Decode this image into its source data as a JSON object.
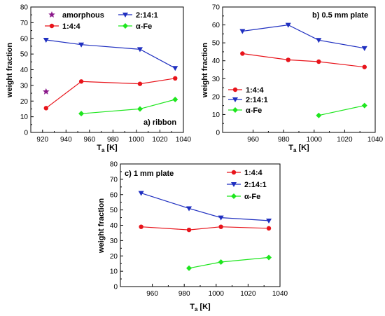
{
  "chart_data": [
    {
      "type": "line",
      "panel_label": "a) ribbon",
      "xlabel_main": "T",
      "xlabel_sub": "a",
      "xlabel_unit": "[K]",
      "ylabel": "weight fraction",
      "xlim": [
        910,
        1040
      ],
      "ylim": [
        0,
        80
      ],
      "xticks": [
        920,
        940,
        960,
        980,
        1000,
        1020,
        1040
      ],
      "yticks": [
        0,
        10,
        20,
        30,
        40,
        50,
        60,
        70,
        80
      ],
      "grid": false,
      "legend_position": "top",
      "series": [
        {
          "name": "amorphous",
          "color": "#8b1a8b",
          "marker": "star",
          "x": [
            923
          ],
          "y": [
            26
          ]
        },
        {
          "name": "2:14:1",
          "color": "#1f2fc0",
          "marker": "triangle-down",
          "x": [
            923,
            953,
            1003,
            1033
          ],
          "y": [
            59,
            56,
            53,
            41
          ]
        },
        {
          "name": "1:4:4",
          "color": "#e8141b",
          "marker": "circle",
          "x": [
            923,
            953,
            1003,
            1033
          ],
          "y": [
            15.5,
            32.5,
            31,
            34.5
          ]
        },
        {
          "name": "α-Fe",
          "color": "#1ee61e",
          "marker": "diamond",
          "x": [
            953,
            1003,
            1033
          ],
          "y": [
            12,
            15,
            21
          ]
        }
      ]
    },
    {
      "type": "line",
      "panel_label": "b) 0.5 mm plate",
      "xlabel_main": "T",
      "xlabel_sub": "a",
      "xlabel_unit": "[K]",
      "ylabel": "weight fraction",
      "xlim": [
        940,
        1040
      ],
      "ylim": [
        0,
        70
      ],
      "xticks": [
        960,
        980,
        1000,
        1020,
        1040
      ],
      "yticks": [
        0,
        10,
        20,
        30,
        40,
        50,
        60,
        70
      ],
      "grid": false,
      "legend_position": "left",
      "series": [
        {
          "name": "1:4:4",
          "color": "#e8141b",
          "marker": "circle",
          "x": [
            953,
            983,
            1003,
            1033
          ],
          "y": [
            44,
            40.5,
            39.5,
            36.5
          ]
        },
        {
          "name": "2:14:1",
          "color": "#1f2fc0",
          "marker": "triangle-down",
          "x": [
            953,
            983,
            1003,
            1033
          ],
          "y": [
            56.5,
            60,
            51.5,
            47
          ]
        },
        {
          "name": "α-Fe",
          "color": "#1ee61e",
          "marker": "diamond",
          "x": [
            1003,
            1033
          ],
          "y": [
            9.5,
            15
          ]
        }
      ]
    },
    {
      "type": "line",
      "panel_label": "c) 1 mm plate",
      "xlabel_main": "T",
      "xlabel_sub": "a",
      "xlabel_unit": "[K]",
      "ylabel": "weight fraction",
      "xlim": [
        940,
        1040
      ],
      "ylim": [
        0,
        80
      ],
      "xticks": [
        960,
        980,
        1000,
        1020,
        1040
      ],
      "yticks": [
        0,
        10,
        20,
        30,
        40,
        50,
        60,
        70,
        80
      ],
      "grid": false,
      "legend_position": "top-right",
      "series": [
        {
          "name": "1:4:4",
          "color": "#e8141b",
          "marker": "circle",
          "x": [
            953,
            983,
            1003,
            1033
          ],
          "y": [
            39,
            37,
            39,
            38
          ]
        },
        {
          "name": "2:14:1",
          "color": "#1f2fc0",
          "marker": "triangle-down",
          "x": [
            953,
            983,
            1003,
            1033
          ],
          "y": [
            61,
            51,
            45,
            43
          ]
        },
        {
          "name": "α-Fe",
          "color": "#1ee61e",
          "marker": "diamond",
          "x": [
            983,
            1003,
            1033
          ],
          "y": [
            12,
            16,
            19
          ]
        }
      ]
    }
  ]
}
